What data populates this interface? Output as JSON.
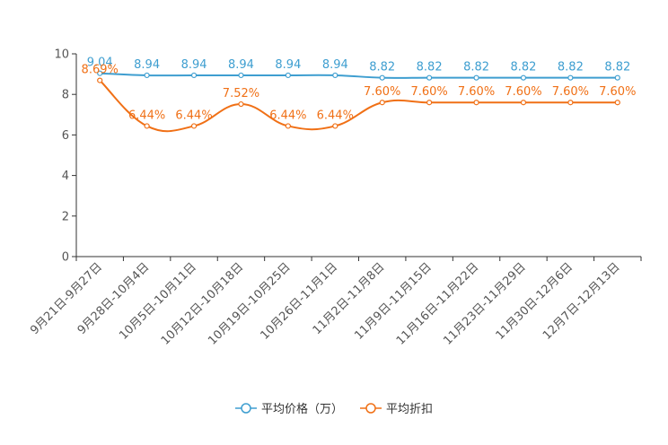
{
  "chart_data": {
    "type": "line",
    "title": "",
    "xlabel": "",
    "ylabel": "",
    "ylim": [
      0,
      10
    ],
    "yticks": [
      0,
      2,
      4,
      6,
      8,
      10
    ],
    "grid": false,
    "legend_position": "bottom-center",
    "categories": [
      "9月21日-9月27日",
      "9月28日-10月4日",
      "10月5日-10月11日",
      "10月12日-10月18日",
      "10月19日-10月25日",
      "10月26日-11月1日",
      "11月2日-11月8日",
      "11月9日-11月15日",
      "11月16日-11月22日",
      "11月23日-11月29日",
      "11月30日-12月6日",
      "12月7日-12月13日"
    ],
    "series": [
      {
        "name": "平均价格（万）",
        "color": "#3e9ed0",
        "values": [
          9.04,
          8.94,
          8.94,
          8.94,
          8.94,
          8.94,
          8.82,
          8.82,
          8.82,
          8.82,
          8.82,
          8.82
        ],
        "labels": [
          "9.04",
          "8.94",
          "8.94",
          "8.94",
          "8.94",
          "8.94",
          "8.82",
          "8.82",
          "8.82",
          "8.82",
          "8.82",
          "8.82"
        ]
      },
      {
        "name": "平均折扣",
        "color": "#f07016",
        "values": [
          8.69,
          6.44,
          6.44,
          7.52,
          6.44,
          6.44,
          7.6,
          7.6,
          7.6,
          7.6,
          7.6,
          7.6
        ],
        "labels": [
          "8.69%",
          "6.44%",
          "6.44%",
          "7.52%",
          "6.44%",
          "6.44%",
          "7.60%",
          "7.60%",
          "7.60%",
          "7.60%",
          "7.60%",
          "7.60%"
        ]
      }
    ]
  }
}
